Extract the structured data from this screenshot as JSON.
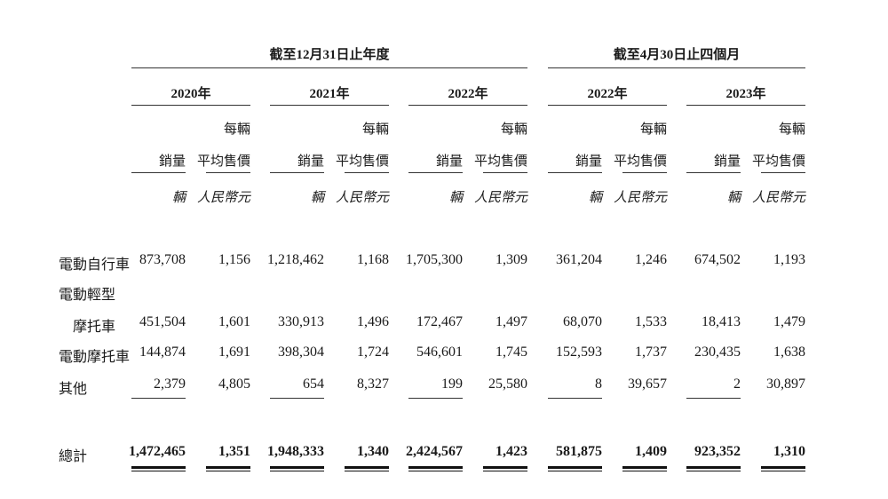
{
  "groups": [
    {
      "title": "截至12月31日止年度"
    },
    {
      "title": "截至4月30日止四個月"
    }
  ],
  "periods": [
    {
      "year": "2020年"
    },
    {
      "year": "2021年"
    },
    {
      "year": "2022年"
    },
    {
      "year": "2022年"
    },
    {
      "year": "2023年"
    }
  ],
  "column_headers": {
    "sales_volume": "銷量",
    "per_unit_line1": "每輛",
    "per_unit_line2": "平均售價",
    "unit_sales": "輛",
    "unit_price": "人民幣元"
  },
  "rows": [
    {
      "label": "電動自行車",
      "values": [
        "873,708",
        "1,156",
        "1,218,462",
        "1,168",
        "1,705,300",
        "1,309",
        "361,204",
        "1,246",
        "674,502",
        "1,193"
      ]
    },
    {
      "label": "電動輕型",
      "label2": "摩托車",
      "values": [
        "451,504",
        "1,601",
        "330,913",
        "1,496",
        "172,467",
        "1,497",
        "68,070",
        "1,533",
        "18,413",
        "1,479"
      ]
    },
    {
      "label": "電動摩托車",
      "values": [
        "144,874",
        "1,691",
        "398,304",
        "1,724",
        "546,601",
        "1,745",
        "152,593",
        "1,737",
        "230,435",
        "1,638"
      ]
    },
    {
      "label": "其他",
      "values": [
        "2,379",
        "4,805",
        "654",
        "8,327",
        "199",
        "25,580",
        "8",
        "39,657",
        "2",
        "30,897"
      ]
    }
  ],
  "total": {
    "label": "總計",
    "values": [
      "1,472,465",
      "1,351",
      "1,948,333",
      "1,340",
      "2,424,567",
      "1,423",
      "581,875",
      "1,409",
      "923,352",
      "1,310"
    ]
  }
}
